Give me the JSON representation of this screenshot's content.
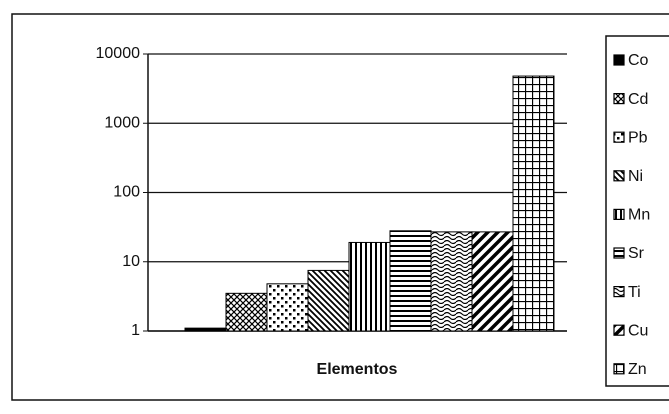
{
  "chart_data": {
    "type": "bar",
    "x_label": "Elementos",
    "log_scale": true,
    "grid": true,
    "legend": "right",
    "ylim": [
      1,
      10000
    ],
    "yticks": [
      1,
      10,
      100,
      1000,
      10000
    ],
    "series": [
      {
        "name": "Co",
        "color": "#000000",
        "values": [
          1.1
        ]
      },
      {
        "name": "Cd",
        "color": "#000000",
        "values": [
          3.5
        ]
      },
      {
        "name": "Pb",
        "color": "#000000",
        "values": [
          4.8
        ]
      },
      {
        "name": "Ni",
        "color": "#000000",
        "values": [
          7.5
        ]
      },
      {
        "name": "Mn",
        "color": "#000000",
        "values": [
          19
        ]
      },
      {
        "name": "Sr",
        "color": "#000000",
        "values": [
          28
        ]
      },
      {
        "name": "Ti",
        "color": "#000000",
        "values": [
          27
        ]
      },
      {
        "name": "Cu",
        "color": "#000000",
        "values": [
          27
        ]
      },
      {
        "name": "Zn",
        "color": "#000000",
        "values": [
          4800
        ]
      }
    ]
  }
}
